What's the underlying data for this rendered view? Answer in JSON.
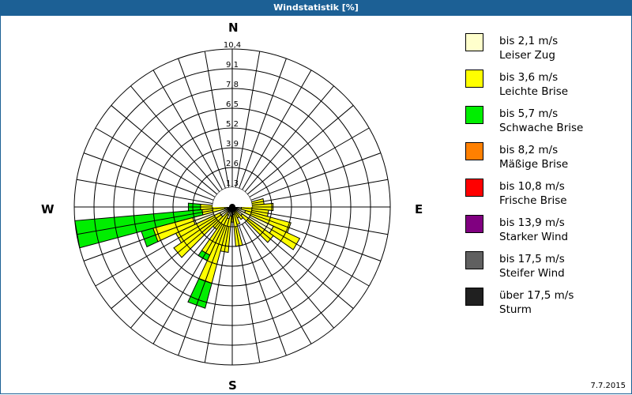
{
  "window": {
    "title": "Windstatistik [%]"
  },
  "compass": {
    "north": "N",
    "east": "E",
    "south": "S",
    "west": "W"
  },
  "legend": [
    {
      "range": "bis 2,1 m/s",
      "name": "Leiser Zug",
      "color": "#ffffcc"
    },
    {
      "range": "bis 3,6 m/s",
      "name": "Leichte Brise",
      "color": "#ffff00"
    },
    {
      "range": "bis 5,7 m/s",
      "name": "Schwache Brise",
      "color": "#00ee00"
    },
    {
      "range": "bis 8,2 m/s",
      "name": "Mäßige Brise",
      "color": "#ff8000"
    },
    {
      "range": "bis 10,8 m/s",
      "name": "Frische Brise",
      "color": "#ff0000"
    },
    {
      "range": "bis 13,9 m/s",
      "name": "Starker Wind",
      "color": "#800080"
    },
    {
      "range": "bis 17,5 m/s",
      "name": "Steifer Wind",
      "color": "#606060"
    },
    {
      "range": "über 17,5 m/s",
      "name": "Sturm",
      "color": "#202020"
    }
  ],
  "footer": {
    "date": "7.7.2015"
  },
  "chart_data": {
    "type": "wind-rose",
    "title": "Windstatistik [%]",
    "unit": "%",
    "radial_ticks": [
      "1,3",
      "2,6",
      "3,9",
      "5,2",
      "6,5",
      "7,8",
      "9,1",
      "10,4"
    ],
    "rmax": 10.4,
    "sector_width_deg": 10,
    "series": [
      "bis 2,1 m/s",
      "bis 3,6 m/s",
      "bis 5,7 m/s",
      "bis 8,2 m/s",
      "bis 10,8 m/s",
      "bis 13,9 m/s",
      "bis 17,5 m/s",
      "über 17,5 m/s"
    ],
    "sectors": [
      {
        "dir": 0,
        "cumulative": [
          0.1,
          0.2,
          0.2
        ]
      },
      {
        "dir": 10,
        "cumulative": [
          0.1,
          0.3,
          0.3
        ]
      },
      {
        "dir": 20,
        "cumulative": [
          0.1,
          0.3,
          0.3
        ]
      },
      {
        "dir": 30,
        "cumulative": [
          0.1,
          0.3,
          0.3
        ]
      },
      {
        "dir": 40,
        "cumulative": [
          0.1,
          0.3,
          0.3
        ]
      },
      {
        "dir": 50,
        "cumulative": [
          0.1,
          0.4,
          0.4
        ]
      },
      {
        "dir": 60,
        "cumulative": [
          0.2,
          0.5,
          0.5
        ]
      },
      {
        "dir": 70,
        "cumulative": [
          0.3,
          1.2,
          1.2
        ]
      },
      {
        "dir": 80,
        "cumulative": [
          0.5,
          2.1,
          2.1
        ]
      },
      {
        "dir": 90,
        "cumulative": [
          0.6,
          2.7,
          2.7
        ]
      },
      {
        "dir": 100,
        "cumulative": [
          0.6,
          2.4,
          2.4
        ]
      },
      {
        "dir": 110,
        "cumulative": [
          0.9,
          4.0,
          4.0
        ]
      },
      {
        "dir": 120,
        "cumulative": [
          3.0,
          4.9,
          4.9
        ]
      },
      {
        "dir": 130,
        "cumulative": [
          0.8,
          3.3,
          3.3
        ]
      },
      {
        "dir": 140,
        "cumulative": [
          0.3,
          1.0,
          1.0
        ]
      },
      {
        "dir": 150,
        "cumulative": [
          0.3,
          0.8,
          0.8
        ]
      },
      {
        "dir": 160,
        "cumulative": [
          0.3,
          1.2,
          1.2
        ]
      },
      {
        "dir": 170,
        "cumulative": [
          0.5,
          2.6,
          2.6
        ]
      },
      {
        "dir": 180,
        "cumulative": [
          0.3,
          1.0,
          1.0
        ]
      },
      {
        "dir": 190,
        "cumulative": [
          0.6,
          3.0,
          3.0
        ]
      },
      {
        "dir": 200,
        "cumulative": [
          0.8,
          5.2,
          6.9
        ]
      },
      {
        "dir": 210,
        "cumulative": [
          0.6,
          3.5,
          3.9
        ]
      },
      {
        "dir": 220,
        "cumulative": [
          0.4,
          1.8,
          1.8
        ]
      },
      {
        "dir": 230,
        "cumulative": [
          0.9,
          4.7,
          4.7
        ]
      },
      {
        "dir": 240,
        "cumulative": [
          0.9,
          4.1,
          4.1
        ]
      },
      {
        "dir": 250,
        "cumulative": [
          2.7,
          5.4,
          6.2
        ]
      },
      {
        "dir": 260,
        "cumulative": [
          0.5,
          2.0,
          10.4
        ]
      },
      {
        "dir": 270,
        "cumulative": [
          0.3,
          2.1,
          2.9
        ]
      },
      {
        "dir": 280,
        "cumulative": [
          0.1,
          0.3,
          0.3
        ]
      },
      {
        "dir": 290,
        "cumulative": [
          0.1,
          0.2,
          0.2
        ]
      },
      {
        "dir": 300,
        "cumulative": [
          0.1,
          0.2,
          0.2
        ]
      },
      {
        "dir": 310,
        "cumulative": [
          0.1,
          0.2,
          0.2
        ]
      },
      {
        "dir": 320,
        "cumulative": [
          0.1,
          0.2,
          0.2
        ]
      },
      {
        "dir": 330,
        "cumulative": [
          0.1,
          0.2,
          0.2
        ]
      },
      {
        "dir": 340,
        "cumulative": [
          0.1,
          0.2,
          0.2
        ]
      },
      {
        "dir": 350,
        "cumulative": [
          0.1,
          0.2,
          0.2
        ]
      }
    ],
    "legend_position": "right"
  }
}
